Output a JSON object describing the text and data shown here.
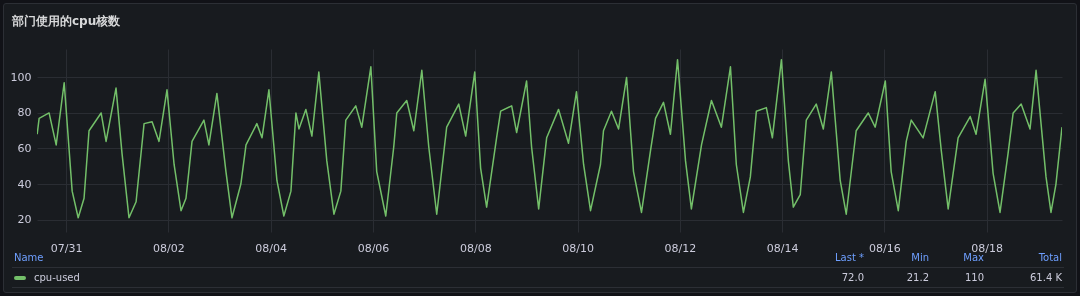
{
  "chart_data": {
    "type": "line",
    "title": "部门使用的cpu核数",
    "legend_title": "Name",
    "legend": "bottom",
    "grid": true,
    "marker": "none",
    "line_style": "solid",
    "annotations": [
      "Last *",
      "Min",
      "Max",
      "Total",
      "72.0",
      "21.2",
      "110",
      "61.4 K"
    ],
    "xlim": [
      "--07-30T10:20",
      "--08-19T11:20"
    ],
    "ylim": [
      13,
      116
    ],
    "xticks": [
      {
        "value": "--07-31",
        "label": "07/31"
      },
      {
        "value": "--08-02",
        "label": "08/02"
      },
      {
        "value": "--08-04",
        "label": "08/04"
      },
      {
        "value": "--08-06",
        "label": "08/06"
      },
      {
        "value": "--08-08",
        "label": "08/08"
      },
      {
        "value": "--08-10",
        "label": "08/10"
      },
      {
        "value": "--08-12",
        "label": "08/12"
      },
      {
        "value": "--08-14",
        "label": "08/14"
      },
      {
        "value": "--08-16",
        "label": "08/16"
      },
      {
        "value": "--08-18",
        "label": "08/18"
      }
    ],
    "yticks": [
      20,
      40,
      60,
      80,
      100
    ],
    "x": [
      "--07-30T10:25",
      "--07-30T11:20",
      "--07-30T16:00",
      "--07-30T19:20",
      "--07-30T23:05",
      "--07-31T02:50",
      "--07-31T05:40",
      "--07-31T08:25",
      "--07-31T10:45",
      "--07-31T16:25",
      "--07-31T18:45",
      "--07-31T23:25",
      "--08-01T02:15",
      "--08-01T05:30",
      "--08-01T08:50",
      "--08-01T12:35",
      "--08-01T16:20",
      "--08-01T19:35",
      "--08-01T23:20",
      "--08-02T02:40",
      "--08-02T05:55",
      "--08-02T08:15",
      "--08-02T11:05",
      "--08-02T16:40",
      "--08-02T19:00",
      "--08-02T22:45",
      "--08-03T03:00",
      "--08-03T05:50",
      "--08-03T10:00",
      "--08-03T12:25",
      "--08-03T17:30",
      "--08-03T19:55",
      "--08-03T23:10",
      "--08-04T02:55",
      "--08-04T06:10",
      "--08-04T09:30",
      "--08-04T11:50",
      "--08-04T13:15",
      "--08-04T16:30",
      "--08-04T19:20",
      "--08-04T22:35",
      "--08-05T02:20",
      "--08-05T05:40",
      "--08-05T08:55",
      "--08-05T11:15",
      "--08-05T15:55",
      "--08-05T18:45",
      "--08-05T23:00",
      "--08-06T01:45",
      "--08-06T06:00",
      "--08-06T09:45",
      "--08-06T11:10",
      "--08-06T15:50",
      "--08-06T19:10",
      "--08-06T22:55",
      "--08-07T02:10",
      "--08-07T05:55",
      "--08-07T10:35",
      "--08-07T16:15",
      "--08-07T19:30",
      "--08-07T23:45",
      "--08-08T02:30",
      "--08-08T05:20",
      "--08-08T10:00",
      "--08-08T11:55",
      "--08-08T17:05",
      "--08-08T19:25",
      "--08-09T00:05",
      "--08-09T02:25",
      "--08-09T05:45",
      "--08-09T09:30",
      "--08-09T15:05",
      "--08-09T19:45",
      "--08-09T23:30",
      "--08-10T02:50",
      "--08-10T06:05",
      "--08-10T10:45",
      "--08-10T12:10",
      "--08-10T15:55",
      "--08-10T19:15",
      "--08-10T23:00",
      "--08-11T02:15",
      "--08-11T06:00",
      "--08-11T10:15",
      "--08-11T12:35",
      "--08-11T16:20",
      "--08-11T19:35",
      "--08-11T22:55",
      "--08-12T02:40",
      "--08-12T05:25",
      "--08-12T10:10",
      "--08-12T14:50",
      "--08-12T19:30",
      "--08-12T23:45",
      "--08-13T02:30",
      "--08-13T05:50",
      "--08-13T09:05",
      "--08-13T11:55",
      "--08-13T16:35",
      "--08-13T19:25",
      "--08-13T23:40",
      "--08-14T02:55",
      "--08-14T05:15",
      "--08-14T08:30",
      "--08-14T11:20",
      "--08-14T16:00",
      "--08-14T19:20",
      "--08-14T23:05",
      "--08-15T03:15",
      "--08-15T06:05",
      "--08-15T10:45",
      "--08-15T16:25",
      "--08-15T19:40",
      "--08-16T00:25",
      "--08-16T03:10",
      "--08-16T06:30",
      "--08-16T10:15",
      "--08-16T12:35",
      "--08-16T18:10",
      "--08-16T23:50",
      "--08-17T02:40",
      "--08-17T05:55",
      "--08-17T10:35",
      "--08-17T16:15",
      "--08-17T19:00",
      "--08-17T23:15",
      "--08-18T03:00",
      "--08-18T06:15",
      "--08-18T10:00",
      "--08-18T12:25",
      "--08-18T16:10",
      "--08-18T20:20",
      "--08-18T23:10",
      "--08-19T03:50",
      "--08-19T06:10",
      "--08-19T08:30",
      "--08-19T11:20"
    ],
    "series": [
      {
        "name": "cpu-used",
        "color": "#73bf69",
        "values": [
          68,
          77,
          80,
          62,
          97,
          36,
          21,
          32,
          70,
          80,
          64,
          94,
          57,
          21,
          30,
          74,
          75,
          64,
          93,
          51,
          25,
          32,
          64,
          76,
          62,
          91,
          47,
          21,
          40,
          62,
          74,
          66,
          93,
          42,
          22,
          36,
          80,
          71,
          82,
          67,
          103,
          53,
          23,
          36,
          76,
          84,
          72,
          106,
          47,
          22,
          61,
          80,
          87,
          70,
          104,
          61,
          23,
          72,
          85,
          67,
          103,
          49,
          27,
          66,
          81,
          84,
          69,
          98,
          61,
          26,
          66,
          82,
          63,
          92,
          51,
          25,
          51,
          70,
          81,
          71,
          100,
          47,
          24,
          59,
          77,
          86,
          68,
          110,
          53,
          26,
          62,
          87,
          72,
          106,
          51,
          24,
          44,
          81,
          83,
          66,
          110,
          53,
          27,
          34,
          76,
          85,
          71,
          103,
          42,
          23,
          70,
          80,
          72,
          98,
          47,
          25,
          64,
          76,
          66,
          92,
          59,
          26,
          66,
          78,
          68,
          99,
          46,
          24,
          57,
          80,
          85,
          71,
          104,
          44,
          24,
          40,
          72
        ]
      }
    ]
  }
}
